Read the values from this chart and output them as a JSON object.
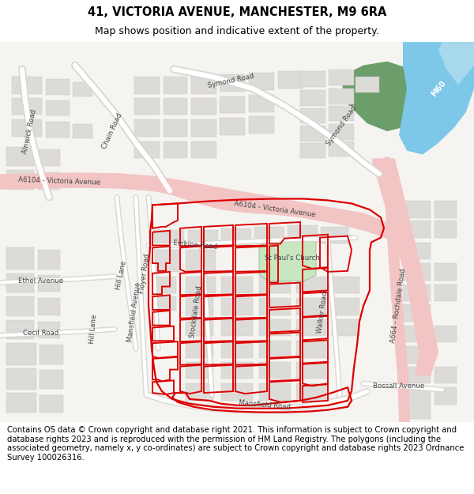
{
  "title": "41, VICTORIA AVENUE, MANCHESTER, M9 6RA",
  "subtitle": "Map shows position and indicative extent of the property.",
  "footer": "Contains OS data © Crown copyright and database right 2021. This information is subject to Crown copyright and database rights 2023 and is reproduced with the permission of HM Land Registry. The polygons (including the associated geometry, namely x, y co-ordinates) are subject to Crown copyright and database rights 2023 Ordnance Survey 100026316.",
  "title_fontsize": 10.5,
  "subtitle_fontsize": 9,
  "footer_fontsize": 7.2,
  "map_bg": "#f5f4f1",
  "road_pink": "#f2c4c4",
  "road_outline": "#e8b0b0",
  "road_white": "#ffffff",
  "road_gray": "#d8d6d2",
  "water_blue": "#7dc8e8",
  "water_blue2": "#a8d8ee",
  "green_dark": "#6b9e6b",
  "church_green": "#c8e6c0",
  "building_fill": "#dddbd8",
  "building_edge": "#c8c6c2",
  "red_color": "#dd0000",
  "text_color": "#444444"
}
